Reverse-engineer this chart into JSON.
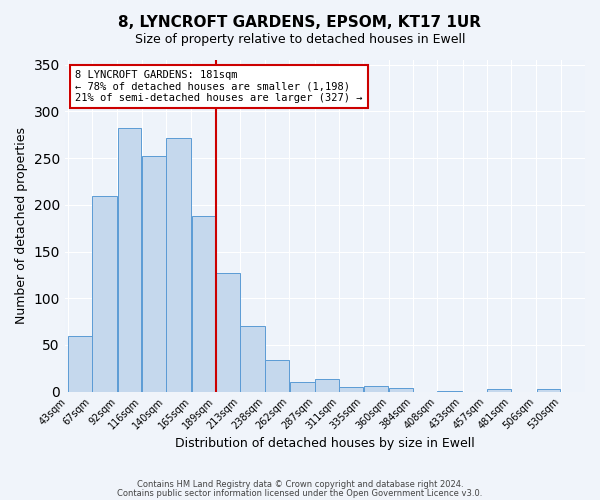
{
  "title": "8, LYNCROFT GARDENS, EPSOM, KT17 1UR",
  "subtitle": "Size of property relative to detached houses in Ewell",
  "xlabel": "Distribution of detached houses by size in Ewell",
  "ylabel": "Number of detached properties",
  "bar_labels": [
    "43sqm",
    "67sqm",
    "92sqm",
    "116sqm",
    "140sqm",
    "165sqm",
    "189sqm",
    "213sqm",
    "238sqm",
    "262sqm",
    "287sqm",
    "311sqm",
    "335sqm",
    "360sqm",
    "384sqm",
    "408sqm",
    "433sqm",
    "457sqm",
    "481sqm",
    "506sqm",
    "530sqm"
  ],
  "bar_values": [
    60,
    210,
    282,
    252,
    272,
    188,
    127,
    70,
    34,
    10,
    14,
    5,
    6,
    4,
    0,
    1,
    0,
    3,
    0,
    3,
    0
  ],
  "bar_color": "#c5d8ed",
  "bar_edge_color": "#5b9bd5",
  "property_line_label": "8 LYNCROFT GARDENS: 181sqm",
  "annotation_line1": "← 78% of detached houses are smaller (1,198)",
  "annotation_line2": "21% of semi-detached houses are larger (327) →",
  "annotation_box_color": "#ffffff",
  "annotation_box_edge_color": "#cc0000",
  "vline_color": "#cc0000",
  "ylim": [
    0,
    355
  ],
  "yticks": [
    0,
    50,
    100,
    150,
    200,
    250,
    300,
    350
  ],
  "footer1": "Contains HM Land Registry data © Crown copyright and database right 2024.",
  "footer2": "Contains public sector information licensed under the Open Government Licence v3.0.",
  "bin_edges": [
    43,
    67,
    92,
    116,
    140,
    165,
    189,
    213,
    238,
    262,
    287,
    311,
    335,
    360,
    384,
    408,
    433,
    457,
    481,
    506,
    530,
    554
  ],
  "background_color": "#f0f4fa",
  "plot_bg_color": "#eef3fa"
}
